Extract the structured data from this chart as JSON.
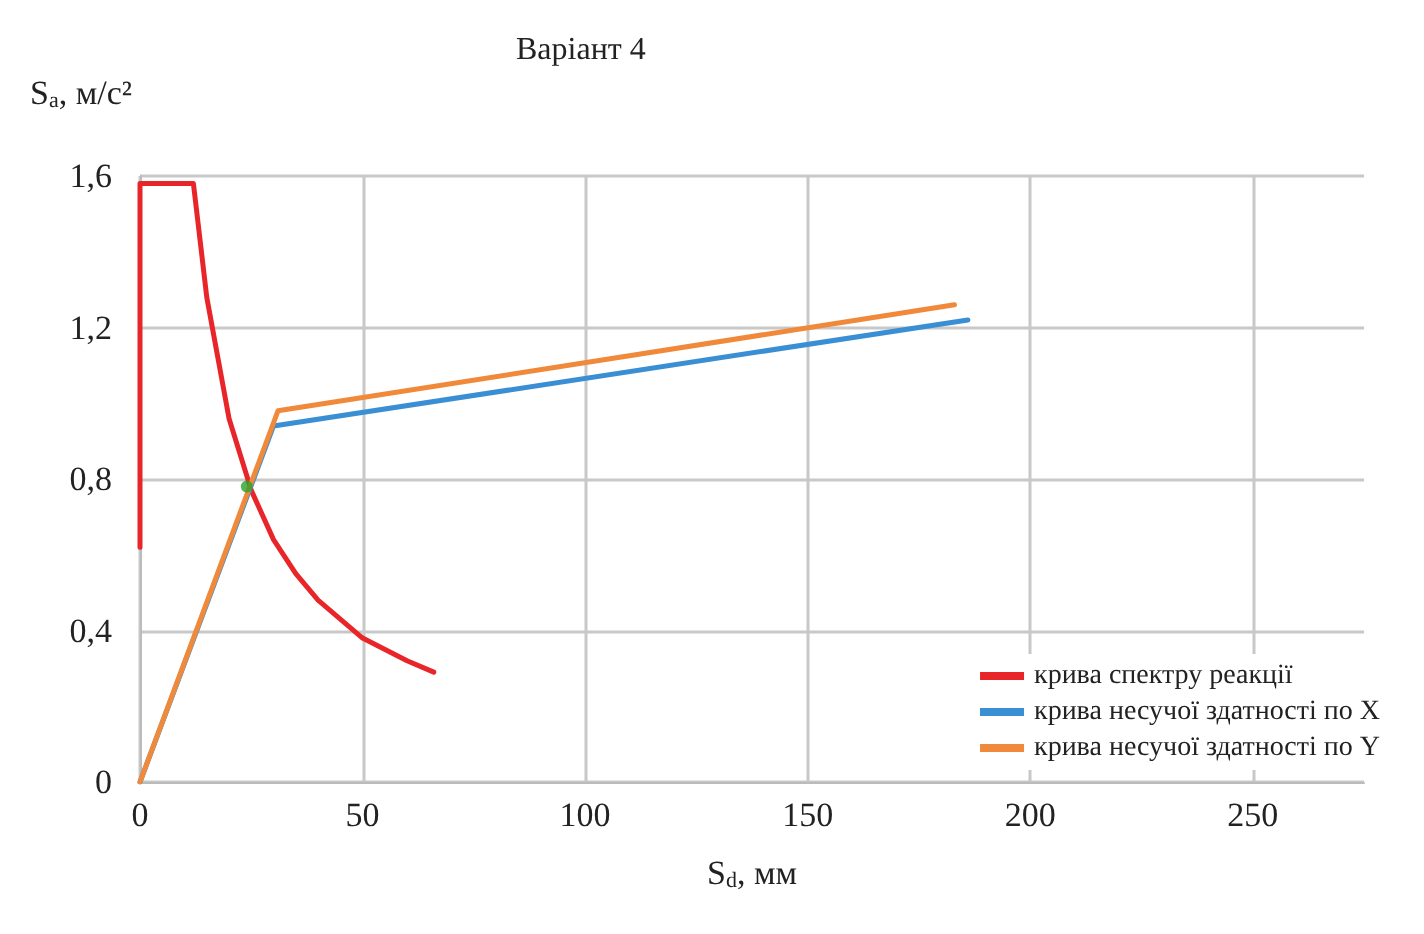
{
  "chart_data": {
    "type": "line",
    "title": "Варіант 4",
    "xlabel": "S$_{d}$, мм",
    "ylabel": "S$_{a}$, м/с²",
    "xlim": [
      0,
      275
    ],
    "xticks": [
      0,
      50,
      100,
      150,
      200,
      250
    ],
    "ylim": [
      0,
      1.6
    ],
    "yticks": [
      {
        "value": 0,
        "label": "0"
      },
      {
        "value": 0.4,
        "label": "0,4"
      },
      {
        "value": 0.8,
        "label": "0,8"
      },
      {
        "value": 1.2,
        "label": "1,2"
      },
      {
        "value": 1.6,
        "label": "1,6"
      }
    ],
    "grid": true,
    "legend": "bottom right",
    "marker": "none",
    "line_style": "solid",
    "series": [
      {
        "name": "крива спектру реакції",
        "color": "#e8262a",
        "x": [
          0,
          0,
          12,
          15,
          20,
          25,
          30,
          35,
          40,
          50,
          60,
          66
        ],
        "values": [
          0.62,
          1.58,
          1.58,
          1.28,
          0.96,
          0.77,
          0.64,
          0.55,
          0.48,
          0.38,
          0.32,
          0.29
        ]
      },
      {
        "name": "крива несучої здатності по X",
        "color": "#3a8fd4",
        "x": [
          0,
          30,
          186
        ],
        "values": [
          0,
          0.94,
          1.22
        ]
      },
      {
        "name": "крива несучої здатності по Y",
        "color": "#f08a3a",
        "x": [
          0,
          31,
          183
        ],
        "values": [
          0,
          0.98,
          1.26
        ]
      },
      {
        "type": "scatter",
        "marker": "circle",
        "color": "#2ca02c",
        "x": [
          24
        ],
        "values": [
          0.78
        ]
      }
    ]
  }
}
